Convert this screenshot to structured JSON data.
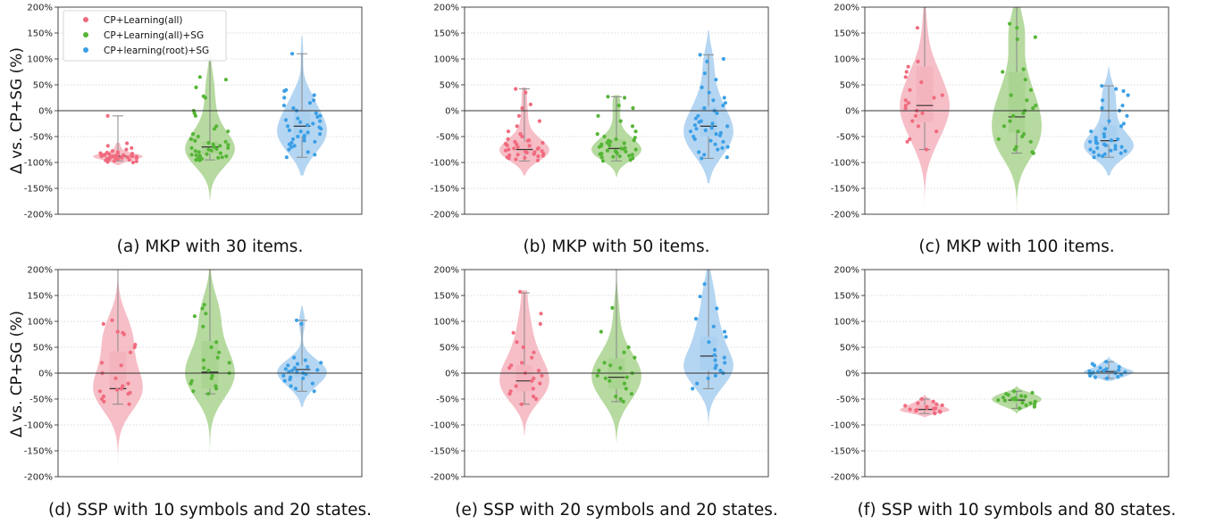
{
  "figure": {
    "ylabel": "Δ vs. CP+SG (%)",
    "yticks": [
      "200%",
      "150%",
      "100%",
      "50%",
      "0%",
      "-50%",
      "-100%",
      "-150%",
      "-200%"
    ]
  },
  "legend": {
    "placement": "top-left of panel (a)",
    "entries": [
      "CP+Learning(all)",
      "CP+Learning(all)+SG",
      "CP+learning(root)+SG"
    ]
  },
  "colors": {
    "series": [
      "#f06b7e",
      "#55b536",
      "#3b9fe6"
    ],
    "violin": [
      "#f4b3bd",
      "#a9d38f",
      "#a8cff0"
    ],
    "zero_line": "#333333",
    "grid": "#d0d0d0"
  },
  "chart_data": [
    {
      "type": "violin",
      "caption": "(a) MKP with 30 items.",
      "ylim": [
        -200,
        200
      ],
      "grid": "horizontal dotted",
      "series": [
        {
          "name": "CP+Learning(all)",
          "median": -88,
          "q1": -92,
          "q3": -83,
          "whisker_low": -97,
          "whisker_high": -10,
          "violin_min": -105,
          "violin_max": -62,
          "points": [
            -10,
            -63,
            -68,
            -72,
            -75,
            -78,
            -80,
            -81,
            -82,
            -83,
            -84,
            -85,
            -85,
            -86,
            -86,
            -87,
            -87,
            -88,
            -88,
            -88,
            -89,
            -89,
            -90,
            -90,
            -91,
            -91,
            -92,
            -92,
            -93,
            -93,
            -94,
            -95,
            -96,
            -97,
            -98,
            -99,
            -100,
            -84,
            -86,
            -90
          ]
        },
        {
          "name": "CP+Learning(all)+SG",
          "median": -70,
          "q1": -83,
          "q3": -60,
          "whisker_low": -95,
          "whisker_high": 100,
          "violin_min": -172,
          "violin_max": 150,
          "points": [
            65,
            60,
            45,
            28,
            25,
            0,
            -5,
            -10,
            -30,
            -35,
            -40,
            -45,
            -50,
            -55,
            -58,
            -60,
            -62,
            -65,
            -68,
            -70,
            -72,
            -74,
            -75,
            -77,
            -78,
            -80,
            -82,
            -84,
            -85,
            -87,
            -88,
            -90,
            -91,
            -93,
            -95,
            -96,
            -72,
            -66,
            -86,
            -92
          ]
        },
        {
          "name": "CP+learning(root)+SG",
          "median": -30,
          "q1": -50,
          "q3": 0,
          "whisker_low": -90,
          "whisker_high": 110,
          "violin_min": -125,
          "violin_max": 145,
          "points": [
            110,
            40,
            38,
            30,
            25,
            20,
            15,
            10,
            5,
            0,
            -5,
            -10,
            -12,
            -15,
            -18,
            -20,
            -22,
            -25,
            -28,
            -30,
            -32,
            -35,
            -38,
            -40,
            -42,
            -45,
            -48,
            -50,
            -52,
            -55,
            -58,
            -60,
            -62,
            -65,
            -68,
            -70,
            -75,
            -80,
            -85,
            -90
          ]
        }
      ]
    },
    {
      "type": "violin",
      "caption": "(b) MKP with 50 items.",
      "ylim": [
        -200,
        200
      ],
      "grid": "horizontal dotted",
      "series": [
        {
          "name": "CP+Learning(all)",
          "median": -75,
          "q1": -85,
          "q3": -60,
          "whisker_low": -97,
          "whisker_high": 42,
          "violin_min": -125,
          "violin_max": 45,
          "points": [
            42,
            35,
            12,
            5,
            -10,
            -20,
            -30,
            -40,
            -45,
            -50,
            -55,
            -58,
            -60,
            -62,
            -65,
            -67,
            -70,
            -72,
            -74,
            -75,
            -77,
            -78,
            -80,
            -81,
            -83,
            -85,
            -86,
            -88,
            -90,
            -92,
            -94,
            -96,
            -68,
            -73,
            -79,
            -84,
            -87,
            -64,
            -57,
            -91
          ]
        },
        {
          "name": "CP+Learning(all)+SG",
          "median": -73,
          "q1": -82,
          "q3": -55,
          "whisker_low": -97,
          "whisker_high": 27,
          "violin_min": -128,
          "violin_max": 30,
          "points": [
            27,
            25,
            10,
            5,
            -10,
            -20,
            -30,
            -40,
            -45,
            -50,
            -52,
            -55,
            -57,
            -60,
            -62,
            -65,
            -67,
            -70,
            -72,
            -73,
            -75,
            -77,
            -78,
            -80,
            -82,
            -84,
            -85,
            -87,
            -88,
            -90,
            -92,
            -95,
            -97,
            -68,
            -74,
            -79,
            -83,
            -63,
            -58,
            -89
          ]
        },
        {
          "name": "CP+learning(root)+SG",
          "median": -30,
          "q1": -50,
          "q3": 8,
          "whisker_low": -92,
          "whisker_high": 108,
          "violin_min": -140,
          "violin_max": 155,
          "points": [
            108,
            100,
            95,
            72,
            60,
            45,
            35,
            25,
            20,
            15,
            10,
            5,
            0,
            -5,
            -10,
            -15,
            -20,
            -22,
            -25,
            -28,
            -30,
            -33,
            -35,
            -38,
            -40,
            -43,
            -45,
            -48,
            -50,
            -55,
            -58,
            -60,
            -65,
            -70,
            -72,
            -75,
            -80,
            -85,
            -90,
            -92
          ]
        }
      ]
    },
    {
      "type": "violin",
      "caption": "(c) MKP with 100 items.",
      "ylim": [
        -200,
        200
      ],
      "grid": "horizontal dotted",
      "series": [
        {
          "name": "CP+Learning(all)",
          "median": 10,
          "q1": -22,
          "q3": 85,
          "whisker_low": -75,
          "whisker_high": 200,
          "violin_min": -200,
          "violin_max": 200,
          "points": [
            160,
            95,
            85,
            75,
            65,
            55,
            40,
            30,
            25,
            20,
            15,
            10,
            5,
            0,
            -5,
            -10,
            -20,
            -30,
            -40,
            -55,
            -60,
            -75
          ]
        },
        {
          "name": "CP+Learning(all)+SG",
          "median": -12,
          "q1": -42,
          "q3": 75,
          "whisker_low": -82,
          "whisker_high": 200,
          "violin_min": -200,
          "violin_max": 200,
          "points": [
            168,
            160,
            142,
            138,
            80,
            75,
            60,
            40,
            30,
            20,
            10,
            5,
            0,
            -5,
            -10,
            -20,
            -30,
            -40,
            -45,
            -50,
            -55,
            -60,
            -70,
            -75,
            -80,
            -82
          ]
        },
        {
          "name": "CP+learning(root)+SG",
          "median": -58,
          "q1": -65,
          "q3": -28,
          "whisker_low": -90,
          "whisker_high": 48,
          "violin_min": -125,
          "violin_max": 85,
          "points": [
            48,
            42,
            38,
            30,
            20,
            10,
            5,
            0,
            -10,
            -20,
            -25,
            -30,
            -35,
            -40,
            -45,
            -50,
            -52,
            -55,
            -57,
            -58,
            -60,
            -62,
            -63,
            -65,
            -67,
            -68,
            -70,
            -72,
            -74,
            -75,
            -77,
            -78,
            -80,
            -82,
            -84,
            -86,
            -88,
            -90
          ]
        }
      ]
    },
    {
      "type": "violin",
      "caption": "(d) SSP with 10 symbols and 20 states.",
      "ylim": [
        -200,
        200
      ],
      "grid": "horizontal dotted",
      "series": [
        {
          "name": "CP+Learning(all)",
          "median": -30,
          "q1": -35,
          "q3": 42,
          "whisker_low": -60,
          "whisker_high": 200,
          "violin_min": -200,
          "violin_max": 200,
          "points": [
            102,
            95,
            80,
            78,
            75,
            55,
            50,
            40,
            20,
            15,
            0,
            -10,
            -20,
            -25,
            -30,
            -32,
            -35,
            -38,
            -40,
            -45,
            -50,
            -55,
            -60
          ]
        },
        {
          "name": "CP+Learning(all)+SG",
          "median": 2,
          "q1": -30,
          "q3": 62,
          "whisker_low": -40,
          "whisker_high": 200,
          "violin_min": -200,
          "violin_max": 200,
          "points": [
            132,
            125,
            115,
            110,
            90,
            60,
            50,
            40,
            30,
            25,
            20,
            10,
            5,
            0,
            -5,
            -10,
            -15,
            -20,
            -25,
            -30,
            -35,
            -40
          ]
        },
        {
          "name": "CP+learning(root)+SG",
          "median": 7,
          "q1": -8,
          "q3": 15,
          "whisker_low": -35,
          "whisker_high": 102,
          "violin_min": -65,
          "violin_max": 130,
          "points": [
            102,
            95,
            30,
            25,
            20,
            18,
            15,
            12,
            10,
            8,
            6,
            5,
            3,
            2,
            0,
            -2,
            -5,
            -8,
            -10,
            -12,
            -15,
            -20,
            -25,
            -30,
            -35
          ]
        }
      ]
    },
    {
      "type": "violin",
      "caption": "(e) SSP with 20 symbols and 20 states.",
      "ylim": [
        -200,
        200
      ],
      "grid": "horizontal dotted",
      "series": [
        {
          "name": "CP+Learning(all)",
          "median": -15,
          "q1": -35,
          "q3": 15,
          "whisker_low": -60,
          "whisker_high": 155,
          "violin_min": -120,
          "violin_max": 160,
          "points": [
            157,
            115,
            95,
            78,
            60,
            50,
            40,
            30,
            20,
            15,
            10,
            5,
            0,
            -5,
            -10,
            -15,
            -20,
            -25,
            -30,
            -35,
            -40,
            -45,
            -50,
            -60
          ]
        },
        {
          "name": "CP+Learning(all)+SG",
          "median": -8,
          "q1": -30,
          "q3": 28,
          "whisker_low": -55,
          "whisker_high": 200,
          "violin_min": -132,
          "violin_max": 200,
          "points": [
            126,
            80,
            50,
            40,
            30,
            20,
            15,
            10,
            5,
            0,
            -5,
            -8,
            -10,
            -15,
            -20,
            -30,
            -40,
            -45,
            -50,
            -55
          ]
        },
        {
          "name": "CP+learning(root)+SG",
          "median": 33,
          "q1": 5,
          "q3": 70,
          "whisker_low": -30,
          "whisker_high": 200,
          "violin_min": -100,
          "violin_max": 200,
          "points": [
            172,
            148,
            125,
            105,
            90,
            80,
            70,
            60,
            45,
            35,
            30,
            25,
            20,
            15,
            10,
            5,
            0,
            -5,
            -10,
            -20,
            -30
          ]
        }
      ]
    },
    {
      "type": "violin",
      "caption": "(f) SSP with 10 symbols and 80 states.",
      "ylim": [
        -200,
        200
      ],
      "grid": "horizontal dotted",
      "series": [
        {
          "name": "CP+Learning(all)",
          "median": -70,
          "q1": -73,
          "q3": -62,
          "whisker_low": -78,
          "whisker_high": -50,
          "violin_min": -85,
          "violin_max": -42,
          "points": [
            -50,
            -55,
            -58,
            -60,
            -62,
            -63,
            -65,
            -67,
            -68,
            -69,
            -70,
            -71,
            -72,
            -73,
            -74,
            -75,
            -77,
            -78
          ]
        },
        {
          "name": "CP+Learning(all)+SG",
          "median": -52,
          "q1": -58,
          "q3": -45,
          "whisker_low": -68,
          "whisker_high": -35,
          "violin_min": -78,
          "violin_max": -25,
          "points": [
            -35,
            -38,
            -40,
            -42,
            -44,
            -45,
            -47,
            -48,
            -50,
            -51,
            -52,
            -53,
            -55,
            -57,
            -58,
            -60,
            -62,
            -65,
            -68
          ]
        },
        {
          "name": "CP+learning(root)+SG",
          "median": 3,
          "q1": -2,
          "q3": 8,
          "whisker_low": -10,
          "whisker_high": 22,
          "violin_min": -15,
          "violin_max": 32,
          "points": [
            22,
            18,
            15,
            12,
            10,
            8,
            6,
            5,
            4,
            3,
            2,
            1,
            0,
            -1,
            -3,
            -5,
            -7,
            -8,
            -10
          ]
        }
      ]
    }
  ]
}
